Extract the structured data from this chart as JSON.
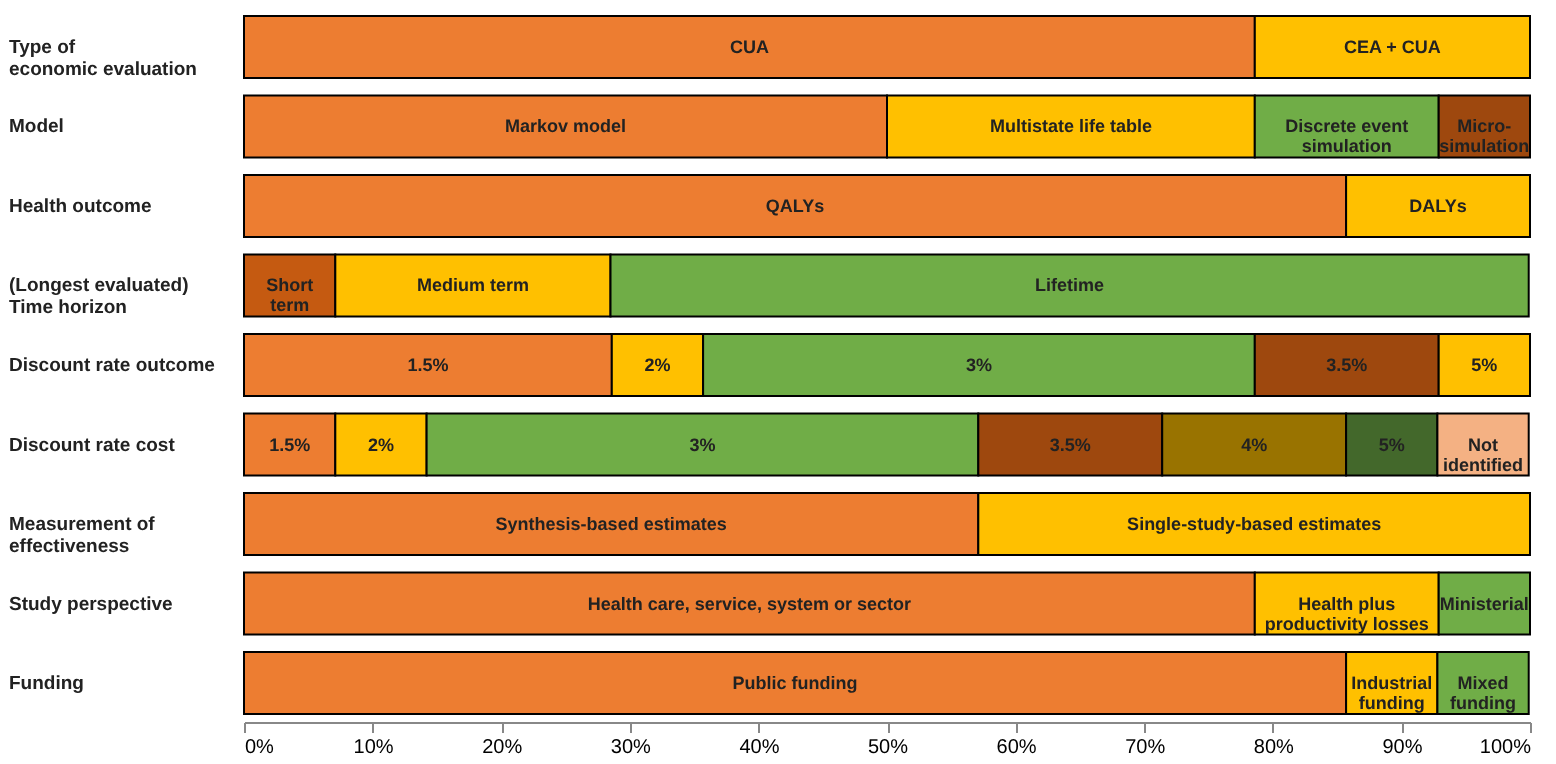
{
  "chart_data": {
    "type": "bar",
    "orientation": "horizontal",
    "stacked": true,
    "categories": [
      "Type of\neconomic evaluation",
      "Model",
      "Health outcome",
      "(Longest evaluated)\nTime horizon",
      "Discount rate outcome",
      "Discount rate cost",
      "Measurement of\neffectiveness",
      "Study perspective",
      "Funding"
    ],
    "xlim": [
      0,
      100
    ],
    "xticks": [
      {
        "value": 0,
        "label": "0%"
      },
      {
        "value": 10,
        "label": "10%"
      },
      {
        "value": 20,
        "label": "20%"
      },
      {
        "value": 30,
        "label": "30%"
      },
      {
        "value": 40,
        "label": "40%"
      },
      {
        "value": 50,
        "label": "50%"
      },
      {
        "value": 60,
        "label": "60%"
      },
      {
        "value": 70,
        "label": "70%"
      },
      {
        "value": 80,
        "label": "80%"
      },
      {
        "value": 90,
        "label": "90%"
      },
      {
        "value": 100,
        "label": "100%"
      }
    ],
    "series": [
      {
        "name": "CUA",
        "color": "#ed7d31",
        "values": [
          78.6,
          null,
          null,
          null,
          null,
          null,
          null,
          null,
          null
        ]
      },
      {
        "name": "CEA + CUA",
        "color": "#ffc000",
        "values": [
          21.4,
          null,
          null,
          null,
          null,
          null,
          null,
          null,
          null
        ]
      },
      {
        "name": "Markov model",
        "color": "#ed7d31",
        "values": [
          null,
          50,
          null,
          null,
          null,
          null,
          null,
          null,
          null
        ]
      },
      {
        "name": "Multistate life table",
        "color": "#ffc000",
        "values": [
          null,
          28.6,
          null,
          null,
          null,
          null,
          null,
          null,
          null
        ]
      },
      {
        "name": "Discrete event\nsimulation",
        "color": "#70ad47",
        "values": [
          null,
          14.3,
          null,
          null,
          null,
          null,
          null,
          null,
          null
        ]
      },
      {
        "name": "Micro-\nsimulation",
        "color": "#9e480e",
        "values": [
          null,
          7.1,
          null,
          null,
          null,
          null,
          null,
          null,
          null
        ]
      },
      {
        "name": "QALYs",
        "color": "#ed7d31",
        "values": [
          null,
          null,
          85.7,
          null,
          null,
          null,
          null,
          null,
          null
        ]
      },
      {
        "name": "DALYs",
        "color": "#ffc000",
        "values": [
          null,
          null,
          14.3,
          null,
          null,
          null,
          null,
          null,
          null
        ]
      },
      {
        "name": "Short\nterm",
        "color": "#c55a11",
        "values": [
          null,
          null,
          null,
          7.1,
          null,
          null,
          null,
          null,
          null
        ]
      },
      {
        "name": "Medium term",
        "color": "#ffc000",
        "values": [
          null,
          null,
          null,
          21.4,
          null,
          null,
          null,
          null,
          null
        ]
      },
      {
        "name": "Lifetime",
        "color": "#70ad47",
        "values": [
          null,
          null,
          null,
          71.4,
          null,
          null,
          null,
          null,
          null
        ]
      },
      {
        "name": "1.5%",
        "color": "#ed7d31",
        "values": [
          null,
          null,
          null,
          null,
          28.6,
          7.1,
          null,
          null,
          null
        ]
      },
      {
        "name": "2%",
        "color": "#ffc000",
        "values": [
          null,
          null,
          null,
          null,
          7.1,
          7.1,
          null,
          null,
          null
        ]
      },
      {
        "name": "3%",
        "color": "#70ad47",
        "values": [
          null,
          null,
          null,
          null,
          42.9,
          42.9,
          null,
          null,
          null
        ]
      },
      {
        "name": "3.5%",
        "color": "#9e480e",
        "values": [
          null,
          null,
          null,
          null,
          14.3,
          14.3,
          null,
          null,
          null
        ]
      },
      {
        "name": "4%",
        "color": "#997300",
        "values": [
          null,
          null,
          null,
          null,
          null,
          14.3,
          null,
          null,
          null
        ]
      },
      {
        "name": "5%",
        "colors": [
          null,
          null,
          null,
          null,
          "#ffc000",
          "#43682b",
          null,
          null,
          null
        ],
        "values": [
          null,
          null,
          null,
          null,
          7.1,
          7.1,
          null,
          null,
          null
        ]
      },
      {
        "name": "Not\nidentified",
        "color": "#f4b183",
        "values": [
          null,
          null,
          null,
          null,
          null,
          7.1,
          null,
          null,
          null
        ]
      },
      {
        "name": "Synthesis-based estimates",
        "color": "#ed7d31",
        "values": [
          null,
          null,
          null,
          null,
          null,
          null,
          57.1,
          null,
          null
        ]
      },
      {
        "name": "Single-study-based estimates",
        "color": "#ffc000",
        "values": [
          null,
          null,
          null,
          null,
          null,
          null,
          42.9,
          null,
          null
        ]
      },
      {
        "name": "Health care, service, system or sector",
        "color": "#ed7d31",
        "values": [
          null,
          null,
          null,
          null,
          null,
          null,
          null,
          78.6,
          null
        ]
      },
      {
        "name": "Health plus\nproductivity losses",
        "color": "#ffc000",
        "values": [
          null,
          null,
          null,
          null,
          null,
          null,
          null,
          14.3,
          null
        ]
      },
      {
        "name": "Ministerial",
        "color": "#70ad47",
        "values": [
          null,
          null,
          null,
          null,
          null,
          null,
          null,
          7.1,
          null
        ]
      },
      {
        "name": "Public funding",
        "color": "#ed7d31",
        "values": [
          null,
          null,
          null,
          null,
          null,
          null,
          null,
          null,
          85.7
        ]
      },
      {
        "name": "Industrial\nfunding",
        "color": "#ffc000",
        "values": [
          null,
          null,
          null,
          null,
          null,
          null,
          null,
          null,
          7.1
        ]
      },
      {
        "name": "Mixed\nfunding",
        "color": "#70ad47",
        "values": [
          null,
          null,
          null,
          null,
          null,
          null,
          null,
          null,
          7.1
        ]
      }
    ]
  }
}
